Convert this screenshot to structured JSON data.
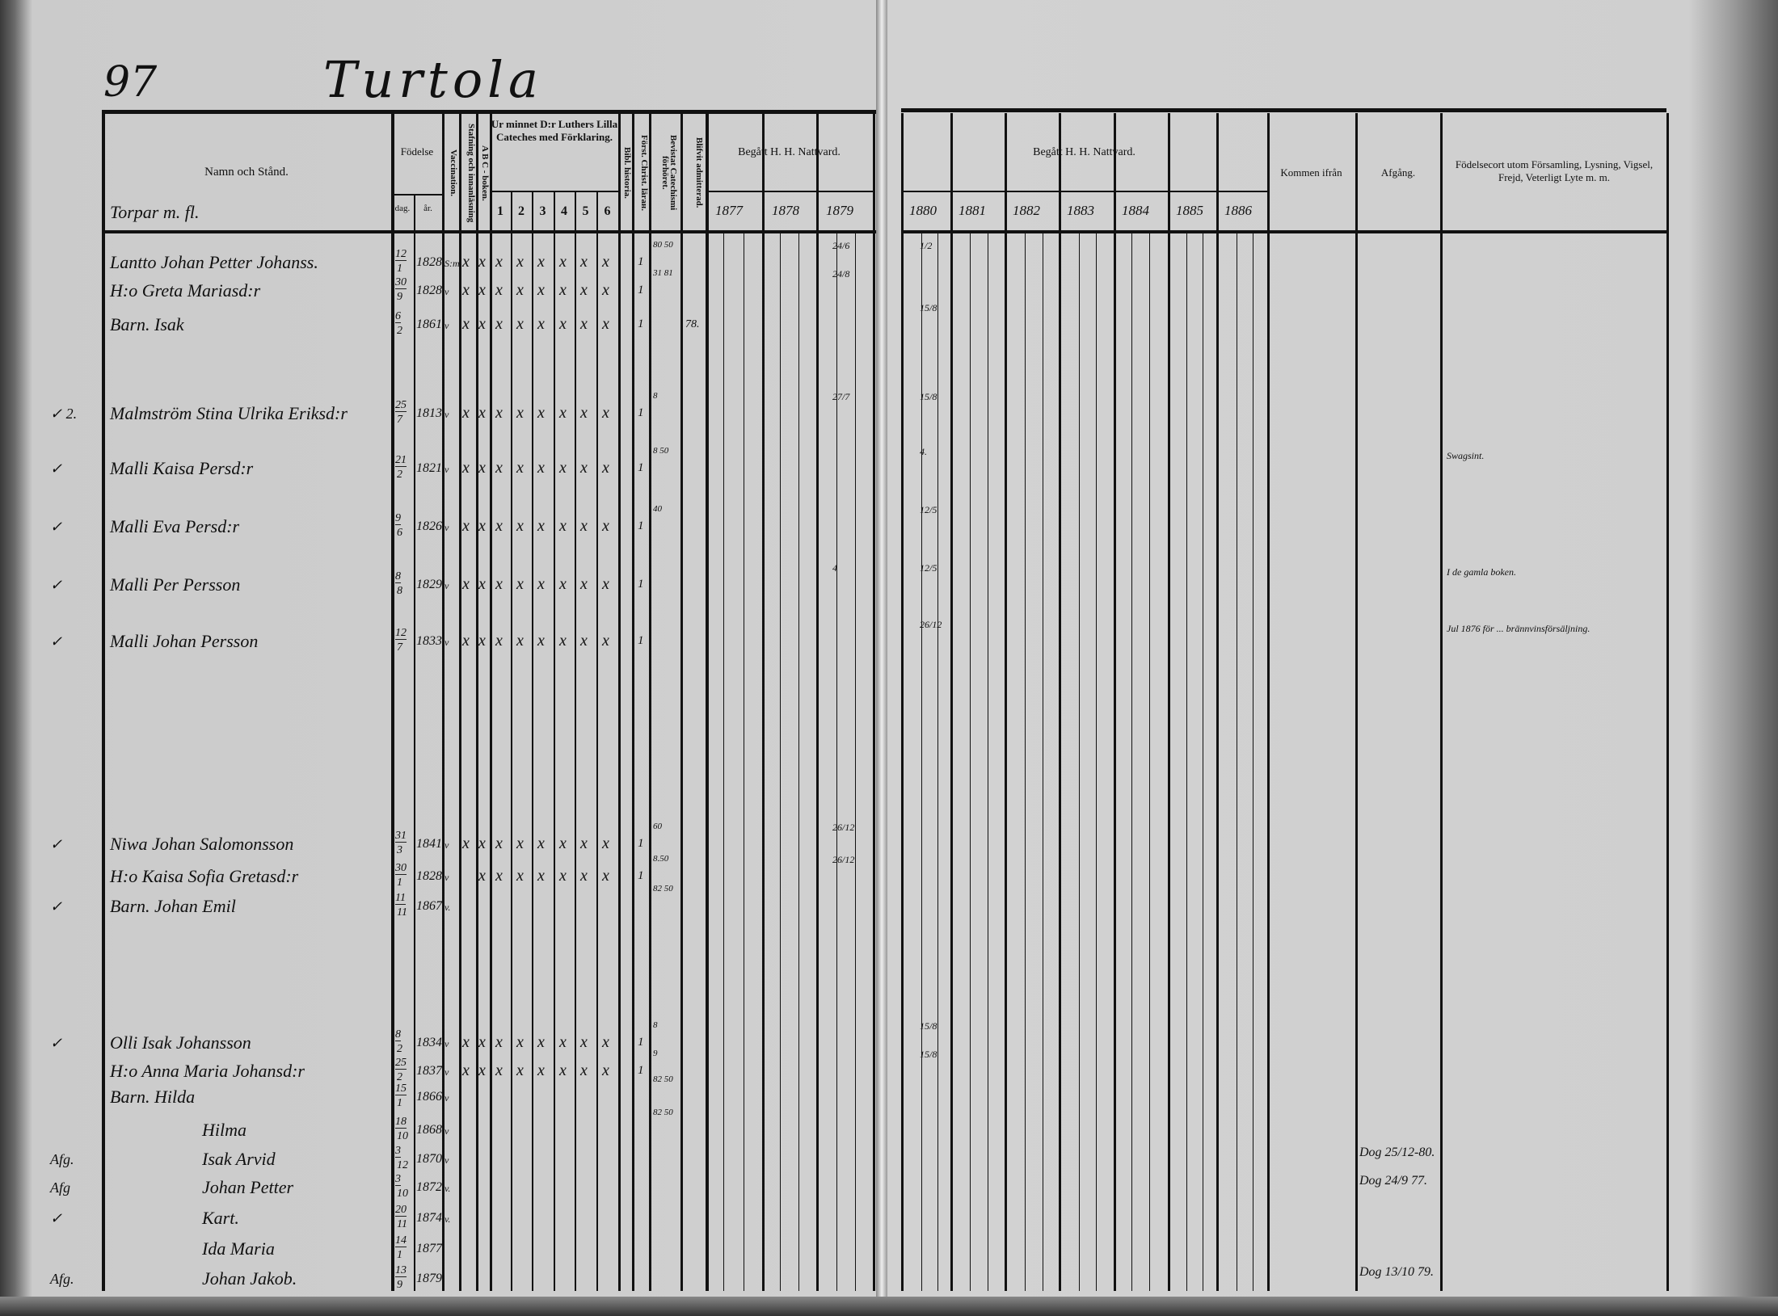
{
  "header": {
    "page_number": "97",
    "village": "Turtola",
    "subheading": "Torpar m. fl."
  },
  "left_columns": {
    "name": "Namn och Stånd.",
    "birth": "Födelse",
    "birth_day": "dag.",
    "birth_year": "år.",
    "vaccination": "Vaccination.",
    "spelling": "Stafning och innanläsning",
    "abc": "A B C - boken.",
    "catechism": "Ur minnet D:r Luthers Lilla Cateches med Förklaring.",
    "catechism_parts": [
      "1",
      "2",
      "3",
      "4",
      "5",
      "6"
    ],
    "bible_history": "Bibl. historia.",
    "christianity": "Först. Christ. lärан.",
    "catechism_exam": "Bevistat Catechismi förhöret.",
    "admitted": "Blifvit admitterad.",
    "communion": "Begått H. H. Nattvard.",
    "communion_years": [
      "1877",
      "1878",
      "1879"
    ]
  },
  "right_columns": {
    "communion": "Begått H. H. Nattvard.",
    "communion_years": [
      "1880",
      "1881",
      "1882",
      "1883",
      "1884",
      "1885",
      "1886"
    ],
    "came_from": "Kommen ifrån",
    "departure": "Afgång.",
    "remarks": "Födelsecort utom Församling, Lysning, Vigsel, Frejd, Veterligt Lyte m. m."
  },
  "rows": [
    {
      "margin": "",
      "name": "Lantto Johan Petter Johanss.",
      "day": "12",
      "month": "1",
      "year": "1828",
      "vacc": "S:m",
      "marks": [
        "x",
        "x",
        "x",
        "x",
        "x",
        "x",
        "x",
        "x"
      ],
      "forst": "1",
      "exam": "80 50",
      "admitted": "",
      "n1879": "24/6",
      "n1880": "1/2",
      "departure": "",
      "remark": ""
    },
    {
      "margin": "",
      "name": "H:o Greta Mariasd:r",
      "day": "30",
      "month": "9",
      "year": "1828",
      "vacc": "v",
      "marks": [
        "x",
        "x",
        "x",
        "x",
        "x",
        "x",
        "x",
        "x"
      ],
      "forst": "1",
      "exam": "31 81",
      "admitted": "",
      "n1879": "24/8",
      "n1880": "",
      "departure": "",
      "remark": ""
    },
    {
      "margin": "",
      "name": "Barn. Isak",
      "day": "6",
      "month": "2",
      "year": "1861",
      "vacc": "v",
      "marks": [
        "x",
        "x",
        "x",
        "x",
        "x",
        "x",
        "x",
        "x"
      ],
      "forst": "1",
      "exam": "",
      "admitted": "78.",
      "n1879": "",
      "n1880": "15/8",
      "departure": "",
      "remark": ""
    },
    {
      "margin": "✓ 2.",
      "name": "Malmström Stina Ulrika Eriksd:r",
      "day": "25",
      "month": "7",
      "year": "1813",
      "vacc": "v",
      "marks": [
        "x",
        "x",
        "x",
        "x",
        "x",
        "x",
        "x",
        "x"
      ],
      "forst": "1",
      "exam": "8",
      "admitted": "",
      "n1879": "27/7",
      "n1880": "15/8",
      "departure": "",
      "remark": ""
    },
    {
      "margin": "✓",
      "name": "Malli Kaisa Persd:r",
      "day": "21",
      "month": "2",
      "year": "1821",
      "vacc": "v",
      "marks": [
        "x",
        "x",
        "x",
        "x",
        "x",
        "x",
        "x",
        "x"
      ],
      "forst": "1",
      "exam": "8 50",
      "admitted": "",
      "n1879": "",
      "n1880": "4.",
      "departure": "",
      "remark": "Swagsint."
    },
    {
      "margin": "✓",
      "name": "Malli Eva Persd:r",
      "day": "9",
      "month": "6",
      "year": "1826",
      "vacc": "v",
      "marks": [
        "x",
        "x",
        "x",
        "x",
        "x",
        "x",
        "x",
        "x"
      ],
      "forst": "1",
      "exam": "40",
      "admitted": "",
      "n1879": "",
      "n1880": "12/5",
      "departure": "",
      "remark": ""
    },
    {
      "margin": "✓",
      "name": "Malli Per Persson",
      "day": "8",
      "month": "8",
      "year": "1829",
      "vacc": "v",
      "marks": [
        "x",
        "x",
        "x",
        "x",
        "x",
        "x",
        "x",
        "x"
      ],
      "forst": "1",
      "exam": "",
      "admitted": "",
      "n1879": "4",
      "n1880": "12/5",
      "departure": "",
      "remark": "I de gamla boken."
    },
    {
      "margin": "✓",
      "name": "Malli Johan Persson",
      "day": "12",
      "month": "7",
      "year": "1833",
      "vacc": "v",
      "marks": [
        "x",
        "x",
        "x",
        "x",
        "x",
        "x",
        "x",
        "x"
      ],
      "forst": "1",
      "exam": "",
      "admitted": "",
      "n1879": "",
      "n1880": "26/12",
      "departure": "",
      "remark": "Jul 1876 för ... brännvinsförsäljning."
    },
    {
      "margin": "✓",
      "name": "Niwa Johan Salomonsson",
      "day": "31",
      "month": "3",
      "year": "1841",
      "vacc": "v",
      "marks": [
        "x",
        "x",
        "x",
        "x",
        "x",
        "x",
        "x",
        "x"
      ],
      "forst": "1",
      "exam": "60",
      "admitted": "",
      "n1879": "26/12",
      "n1880": "",
      "departure": "",
      "remark": ""
    },
    {
      "margin": "",
      "name": "H:o Kaisa Sofia Gretasd:r",
      "day": "30",
      "month": "1",
      "year": "1828",
      "vacc": "v",
      "marks": [
        "",
        "x",
        "x",
        "x",
        "x",
        "x",
        "x",
        "x"
      ],
      "forst": "1",
      "exam": "8.50",
      "admitted": "",
      "n1879": "26/12",
      "n1880": "",
      "departure": "",
      "remark": ""
    },
    {
      "margin": "✓",
      "name": "Barn. Johan Emil",
      "day": "11",
      "month": "11",
      "year": "1867",
      "vacc": "v.",
      "marks": [
        "",
        "",
        "",
        "",
        "",
        "",
        "",
        ""
      ],
      "forst": "",
      "exam": "82 50",
      "admitted": "",
      "n1879": "",
      "n1880": "",
      "departure": "",
      "remark": ""
    },
    {
      "margin": "✓",
      "name": "Olli Isak Johansson",
      "day": "8",
      "month": "2",
      "year": "1834",
      "vacc": "v",
      "marks": [
        "x",
        "x",
        "x",
        "x",
        "x",
        "x",
        "x",
        "x"
      ],
      "forst": "1",
      "exam": "8",
      "admitted": "",
      "n1879": "",
      "n1880": "15/8",
      "departure": "",
      "remark": ""
    },
    {
      "margin": "",
      "name": "H:o Anna Maria Johansd:r",
      "day": "25",
      "month": "2",
      "year": "1837",
      "vacc": "v",
      "marks": [
        "x",
        "x",
        "x",
        "x",
        "x",
        "x",
        "x",
        "x"
      ],
      "forst": "1",
      "exam": "9",
      "admitted": "",
      "n1879": "",
      "n1880": "15/8",
      "departure": "",
      "remark": ""
    },
    {
      "margin": "",
      "name": "Barn. Hilda",
      "day": "15",
      "month": "1",
      "year": "1866",
      "vacc": "v",
      "marks": [
        "",
        "",
        "",
        "",
        "",
        "",
        "",
        ""
      ],
      "forst": "",
      "exam": "82 50",
      "admitted": "",
      "n1879": "",
      "n1880": "",
      "departure": "",
      "remark": ""
    },
    {
      "margin": "",
      "name": "Hilma",
      "day": "18",
      "month": "10",
      "year": "1868",
      "vacc": "v",
      "marks": [
        "",
        "",
        "",
        "",
        "",
        "",
        "",
        ""
      ],
      "forst": "",
      "exam": "82 50",
      "admitted": "",
      "n1879": "",
      "n1880": "",
      "departure": "",
      "remark": ""
    },
    {
      "margin": "Afg.",
      "name": "Isak Arvid",
      "day": "3",
      "month": "12",
      "year": "1870",
      "vacc": "v",
      "marks": [
        "",
        "",
        "",
        "",
        "",
        "",
        "",
        ""
      ],
      "forst": "",
      "exam": "",
      "admitted": "",
      "n1879": "",
      "n1880": "",
      "departure": "Dog 25/12-80.",
      "remark": ""
    },
    {
      "margin": "Afg",
      "name": "Johan Petter",
      "day": "3",
      "month": "10",
      "year": "1872",
      "vacc": "v.",
      "marks": [
        "",
        "",
        "",
        "",
        "",
        "",
        "",
        ""
      ],
      "forst": "",
      "exam": "",
      "admitted": "",
      "n1879": "",
      "n1880": "",
      "departure": "Dog 24/9 77.",
      "remark": ""
    },
    {
      "margin": "✓",
      "name": "Kart.",
      "day": "20",
      "month": "11",
      "year": "1874",
      "vacc": "v.",
      "marks": [
        "",
        "",
        "",
        "",
        "",
        "",
        "",
        ""
      ],
      "forst": "",
      "exam": "",
      "admitted": "",
      "n1879": "",
      "n1880": "",
      "departure": "",
      "remark": ""
    },
    {
      "margin": "",
      "name": "Ida Maria",
      "day": "14",
      "month": "1",
      "year": "1877.",
      "vacc": "",
      "marks": [
        "",
        "",
        "",
        "",
        "",
        "",
        "",
        ""
      ],
      "forst": "",
      "exam": "",
      "admitted": "",
      "n1879": "",
      "n1880": "",
      "departure": "",
      "remark": ""
    },
    {
      "margin": "Afg.",
      "name": "Johan Jakob.",
      "day": "13",
      "month": "9",
      "year": "1879.",
      "vacc": "",
      "marks": [
        "",
        "",
        "",
        "",
        "",
        "",
        "",
        ""
      ],
      "forst": "",
      "exam": "",
      "admitted": "",
      "n1879": "",
      "n1880": "",
      "departure": "Dog 13/10 79.",
      "remark": ""
    }
  ]
}
